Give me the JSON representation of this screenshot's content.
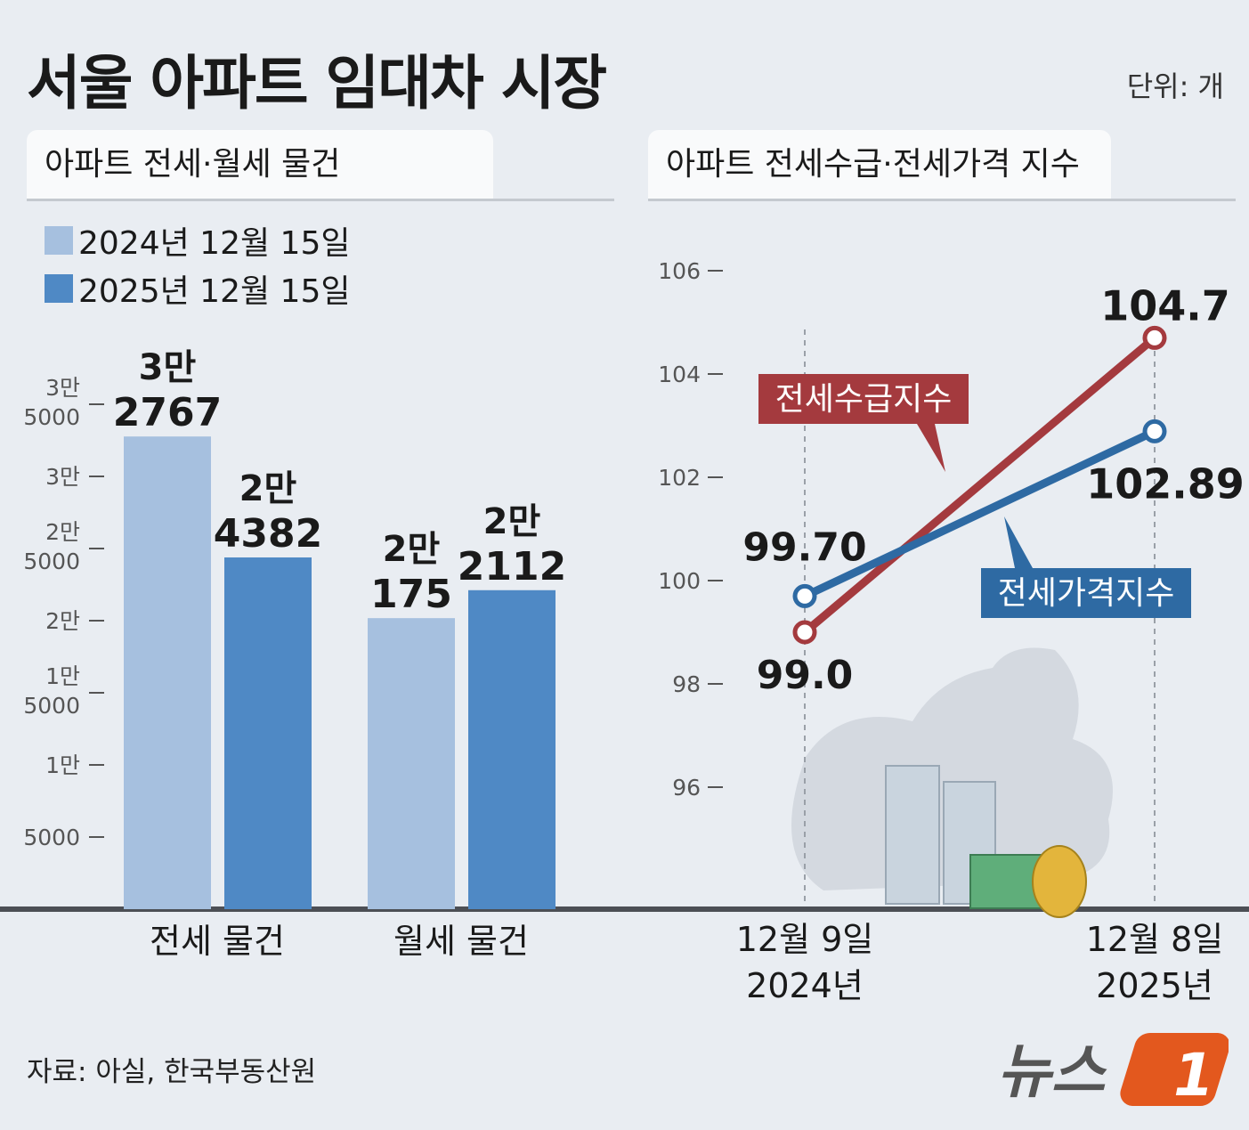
{
  "title": "서울 아파트 임대차 시장",
  "unit": "단위: 개",
  "source": "자료: 아실, 한국부동산원",
  "logo": "뉴스1",
  "colors": {
    "series_2024": "#a6c0df",
    "series_2025": "#4f89c5",
    "jeonse_supply": "#a43a3e",
    "jeonse_price": "#2e6aa3",
    "background": "#e9edf2"
  },
  "left_panel": {
    "tab_label": "아파트 전세·월세 물건",
    "legend": [
      {
        "label": "2024년 12월 15일"
      },
      {
        "label": "2025년 12월 15일"
      }
    ]
  },
  "right_panel": {
    "tab_label": "아파트 전세수급·전세가격 지수"
  },
  "chart_data": [
    {
      "type": "bar",
      "categories": [
        "전세 물건",
        "월세 물건"
      ],
      "series": [
        {
          "name": "2024년 12월 15일",
          "values": [
            32767,
            20175
          ],
          "labels": [
            [
              "3만",
              "2767"
            ],
            [
              "2만",
              "175"
            ]
          ]
        },
        {
          "name": "2025년 12월 15일",
          "values": [
            24382,
            22112
          ],
          "labels": [
            [
              "2만",
              "4382"
            ],
            [
              "2만",
              "2112"
            ]
          ]
        }
      ],
      "y_ticks": [
        {
          "value": 5000,
          "label": [
            "5000"
          ]
        },
        {
          "value": 10000,
          "label": [
            "1만"
          ]
        },
        {
          "value": 15000,
          "label": [
            "1만",
            "5000"
          ]
        },
        {
          "value": 20000,
          "label": [
            "2만"
          ]
        },
        {
          "value": 25000,
          "label": [
            "2만",
            "5000"
          ]
        },
        {
          "value": 30000,
          "label": [
            "3만"
          ]
        },
        {
          "value": 35000,
          "label": [
            "3만",
            "5000"
          ]
        }
      ],
      "ylim": [
        0,
        35000
      ],
      "grid": false
    },
    {
      "type": "line",
      "x": [
        "12월 9일|2024년",
        "12월 8일|2025년"
      ],
      "series": [
        {
          "name": "전세수급지수",
          "values": [
            99.0,
            104.7
          ],
          "labels": [
            "99.0",
            "104.7"
          ]
        },
        {
          "name": "전세가격지수",
          "values": [
            99.7,
            102.89
          ],
          "labels": [
            "99.70",
            "102.89"
          ]
        }
      ],
      "y_ticks": [
        96,
        98,
        100,
        102,
        104,
        106
      ],
      "ylim": [
        94,
        106
      ],
      "grid": false
    }
  ]
}
